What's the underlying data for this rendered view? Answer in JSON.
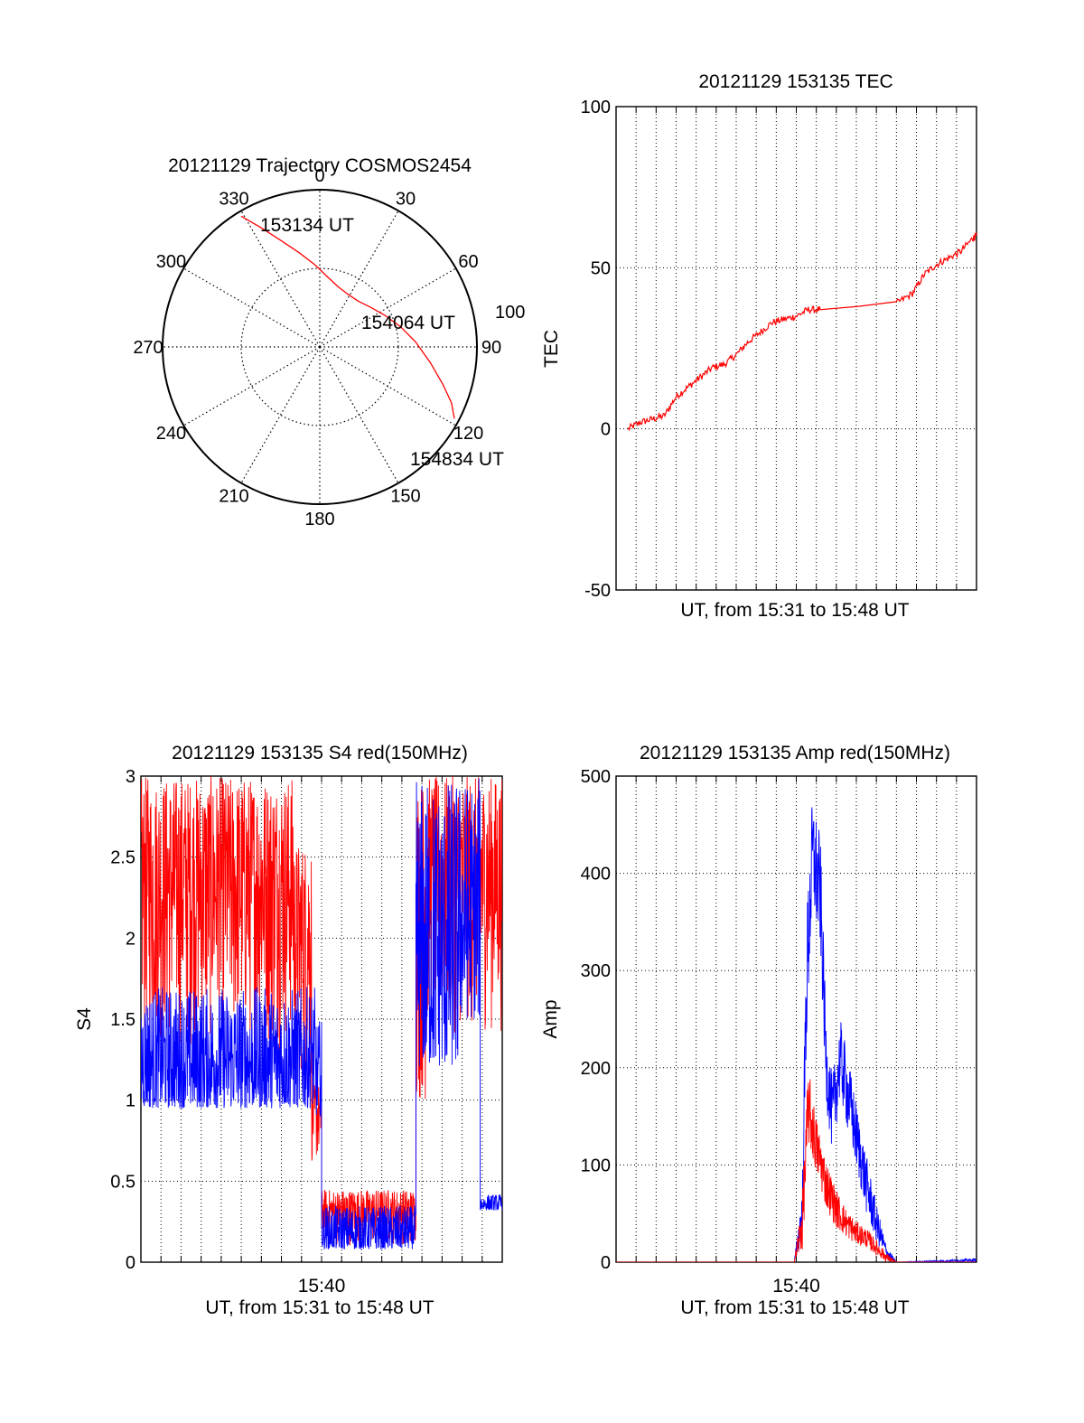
{
  "colors": {
    "red": "#ff0000",
    "blue": "#0000ff",
    "axis": "#000000",
    "grid": "#000000"
  },
  "chart_data": [
    {
      "id": "trajectory",
      "type": "polar",
      "title": "20121129 Trajectory COSMOS2454",
      "azimuth_labels": [
        "0",
        "30",
        "60",
        "90",
        "120",
        "150",
        "180",
        "210",
        "240",
        "270",
        "300",
        "330"
      ],
      "radial_rings": [
        50,
        100
      ],
      "radial_max": 100,
      "radial_label": "100",
      "annotations": [
        "153134 UT",
        "154064 UT",
        "154834 UT"
      ],
      "grid": true,
      "series": [
        {
          "color": "red",
          "points_az_zenith": [
            [
              329,
              97
            ],
            [
              334,
              84
            ],
            [
              340,
              72
            ],
            [
              348,
              61
            ],
            [
              357,
              52
            ],
            [
              6,
              45
            ],
            [
              17,
              40
            ],
            [
              28,
              38
            ],
            [
              40,
              38
            ],
            [
              52,
              41
            ],
            [
              64,
              46
            ],
            [
              76,
              53
            ],
            [
              87,
              61
            ],
            [
              98,
              71
            ],
            [
              107,
              82
            ],
            [
              113,
              91
            ],
            [
              118,
              97
            ]
          ]
        }
      ]
    },
    {
      "id": "tec",
      "type": "line",
      "title": "20121129 153135 TEC",
      "xlabel": "UT, from 15:31 to 15:48 UT",
      "ylabel": "TEC",
      "ylim": [
        -50,
        100
      ],
      "yticks": [
        "-50",
        "0",
        "50",
        "100"
      ],
      "x_minutes_range": [
        0,
        18
      ],
      "grid": true,
      "series": [
        {
          "color": "red",
          "x_minutes": [
            0.6,
            1.2,
            1.8,
            2.4,
            3.0,
            3.6,
            4.2,
            4.8,
            5.4,
            6.0,
            6.6,
            7.2,
            7.8,
            8.4,
            9.0,
            9.6,
            10.2,
            14.0,
            14.8,
            15.4,
            16.0,
            16.6,
            17.2,
            17.8,
            18.0
          ],
          "values": [
            0,
            2,
            3,
            4,
            10,
            13,
            16,
            19,
            20,
            23,
            27,
            30,
            33,
            34,
            35,
            37,
            37,
            39,
            42,
            48,
            51,
            53,
            55,
            59,
            60
          ]
        }
      ]
    },
    {
      "id": "s4",
      "type": "line",
      "title": "20121129 153135 S4 red(150MHz)",
      "xlabel": "UT, from 15:31 to 15:48 UT",
      "ylabel": "S4",
      "ylim": [
        0,
        3
      ],
      "yticks": [
        "0",
        "0.5",
        "1",
        "1.5",
        "2",
        "2.5",
        "3"
      ],
      "xtick_labels": [
        "15:40"
      ],
      "x_minutes_range": [
        0,
        18
      ],
      "grid": true,
      "series": [
        {
          "color": "red",
          "segments": [
            {
              "x0": 0,
              "x1": 7.6,
              "low": 1.3,
              "high": 3.0
            },
            {
              "x0": 7.6,
              "x1": 8.5,
              "low": 1.1,
              "high": 2.6
            },
            {
              "x0": 8.5,
              "x1": 9.0,
              "low": 0.6,
              "high": 1.1
            },
            {
              "x0": 9.0,
              "x1": 13.7,
              "low": 0.1,
              "high": 0.45
            },
            {
              "x0": 13.7,
              "x1": 14.3,
              "low": 0.9,
              "high": 3.0
            },
            {
              "x0": 14.3,
              "x1": 18.0,
              "low": 1.4,
              "high": 3.0
            }
          ]
        },
        {
          "color": "blue",
          "segments": [
            {
              "x0": 0,
              "x1": 8.7,
              "low": 0.95,
              "high": 1.7
            },
            {
              "x0": 8.7,
              "x1": 9.0,
              "low": 0.9,
              "high": 1.5
            },
            {
              "x0": 9.0,
              "x1": 13.7,
              "low": 0.08,
              "high": 0.35
            },
            {
              "x0": 13.7,
              "x1": 15.8,
              "low": 1.2,
              "high": 3.0
            },
            {
              "x0": 15.8,
              "x1": 16.9,
              "low": 1.5,
              "high": 3.0
            },
            {
              "x0": 16.9,
              "x1": 18.0,
              "low": 0.32,
              "high": 0.42
            }
          ]
        }
      ]
    },
    {
      "id": "amp",
      "type": "line",
      "title": "20121129 153135 Amp red(150MHz)",
      "xlabel": "UT, from 15:31 to 15:48 UT",
      "ylabel": "Amp",
      "ylim": [
        0,
        500
      ],
      "yticks": [
        "0",
        "100",
        "200",
        "300",
        "400",
        "500"
      ],
      "xtick_labels": [
        "15:40"
      ],
      "x_minutes_range": [
        0,
        18
      ],
      "grid": true,
      "series": [
        {
          "color": "blue",
          "x_minutes": [
            0,
            8.9,
            9.3,
            9.5,
            9.8,
            10.2,
            10.5,
            10.8,
            11.2,
            11.5,
            12.0,
            12.5,
            13.0,
            13.5,
            14.0,
            18.0
          ],
          "values": [
            0,
            0,
            50,
            280,
            420,
            380,
            200,
            150,
            210,
            180,
            130,
            80,
            40,
            10,
            0,
            2
          ],
          "noise": [
            0,
            0,
            30,
            70,
            60,
            60,
            40,
            40,
            40,
            40,
            35,
            30,
            20,
            8,
            0,
            2
          ]
        },
        {
          "color": "red",
          "x_minutes": [
            0,
            8.9,
            9.3,
            9.6,
            10.0,
            10.5,
            11.0,
            11.5,
            12.0,
            12.5,
            13.0,
            13.5,
            14.0,
            18.0
          ],
          "values": [
            0,
            0,
            40,
            160,
            120,
            80,
            55,
            40,
            30,
            25,
            15,
            5,
            0,
            0
          ],
          "noise": [
            0,
            0,
            30,
            40,
            30,
            25,
            20,
            15,
            12,
            10,
            8,
            5,
            0,
            0
          ]
        }
      ]
    }
  ]
}
